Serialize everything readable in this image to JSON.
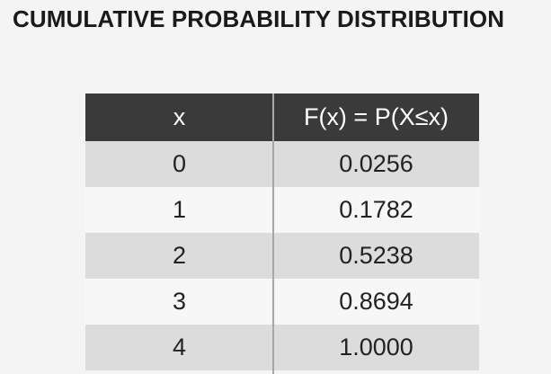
{
  "title": "CUMULATIVE PROBABILITY DISTRIBUTION",
  "table": {
    "headers": [
      "x",
      "F(x) = P(X≤x)"
    ],
    "rows": [
      [
        "0",
        "0.0256"
      ],
      [
        "1",
        "0.1782"
      ],
      [
        "2",
        "0.5238"
      ],
      [
        "3",
        "0.8694"
      ],
      [
        "4",
        "1.0000"
      ]
    ]
  }
}
